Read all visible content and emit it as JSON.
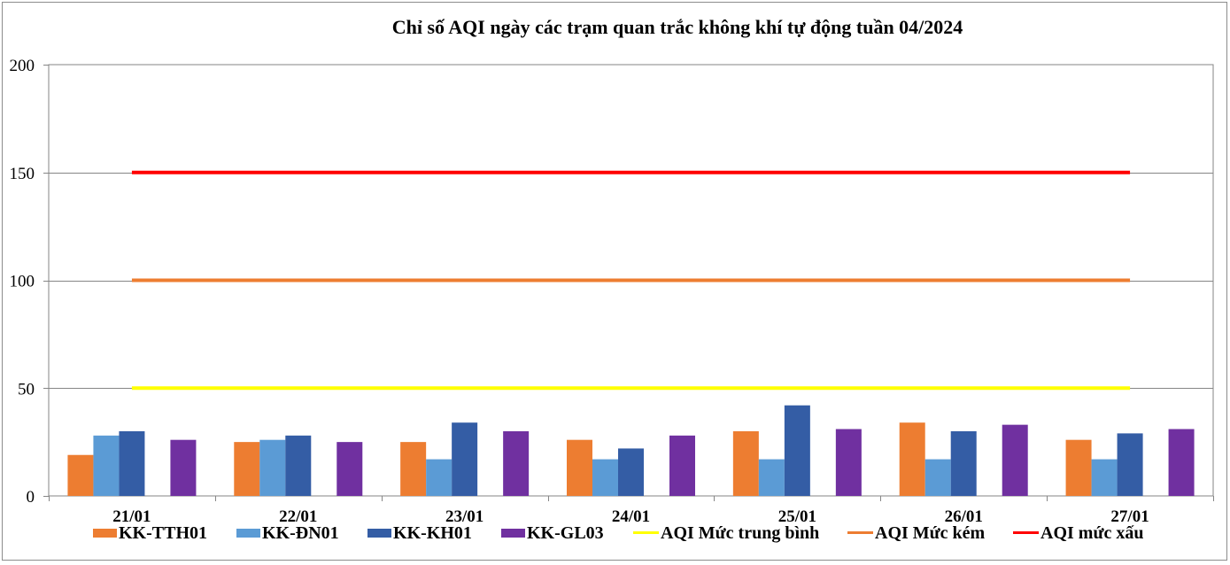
{
  "chart_data": {
    "type": "bar",
    "title": "Chỉ số AQI ngày các trạm quan trắc không khí tự động tuần 04/2024",
    "categories": [
      "21/01",
      "22/01",
      "23/01",
      "24/01",
      "25/01",
      "26/01",
      "27/01"
    ],
    "series": [
      {
        "name": "KK-TTH01",
        "type": "bar",
        "color": "#ED7D31",
        "values": [
          19,
          25,
          25,
          26,
          30,
          34,
          26
        ]
      },
      {
        "name": "KK-ĐN01",
        "type": "bar",
        "color": "#5B9BD5",
        "values": [
          28,
          26,
          17,
          17,
          17,
          17,
          17
        ]
      },
      {
        "name": "KK-KH01",
        "type": "bar",
        "color": "#345DA5",
        "values": [
          30,
          28,
          34,
          22,
          42,
          30,
          29
        ]
      },
      {
        "name": "KK-GL03",
        "type": "bar",
        "color": "#7030A0",
        "values": [
          26,
          25,
          30,
          28,
          31,
          33,
          31
        ]
      },
      {
        "name": "AQI Mức trung bình",
        "type": "line",
        "color": "#FFFF00",
        "values": [
          50,
          50,
          50,
          50,
          50,
          50,
          50
        ]
      },
      {
        "name": "AQI Mức kém",
        "type": "line",
        "color": "#ED7D31",
        "values": [
          100,
          100,
          100,
          100,
          100,
          100,
          100
        ]
      },
      {
        "name": "AQI mức xấu",
        "type": "line",
        "color": "#FF0000",
        "values": [
          150,
          150,
          150,
          150,
          150,
          150,
          150
        ]
      }
    ],
    "xlabel": "",
    "ylabel": "",
    "ylim": [
      0,
      200
    ],
    "yticks": [
      0,
      50,
      100,
      150,
      200
    ],
    "grid": true,
    "legend": "bottom"
  }
}
